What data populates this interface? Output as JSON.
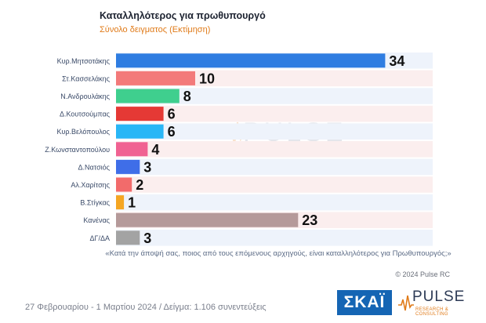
{
  "title": "Καταλληλότερος για πρωθυπουργό",
  "subtitle": "Σύνολο δειγματος   (Εκτίμηση)",
  "question": "«Κατά την άποψή σας, ποιος από τους επόμενους αρχηγούς, είναι καταλληλότερος για Πρωθυπουργός;»",
  "copyright": "© 2024 Pulse RC",
  "footer": "27 Φεβρουαρίου - 1 Μαρτίου 2024  /  Δείγμα:  1.106 συνεντεύξεις",
  "logos": {
    "channel": "ΣΚΑΪ",
    "pollster": "PULSE",
    "pollster_tag": "RESEARCH & CONSULTING"
  },
  "chart_data": {
    "type": "bar",
    "orientation": "horizontal",
    "categories": [
      "Κυρ.Μητσοτάκης",
      "Στ.Κασσελάκης",
      "Ν.Ανδρουλάκης",
      "Δ.Κουτσούμπας",
      "Κυρ.Βελόπουλος",
      "Ζ.Κωνσταντοπούλου",
      "Δ.Νατσιός",
      "Αλ.Χαρίτσης",
      "Β.Στίγκας",
      "Κανένας",
      "ΔΓ/ΔΑ"
    ],
    "values": [
      34,
      10,
      8,
      6,
      6,
      4,
      3,
      2,
      1,
      23,
      3
    ],
    "colors": [
      "#2f7de1",
      "#f37a7a",
      "#3fcf8e",
      "#e53935",
      "#29b6f6",
      "#f06292",
      "#3f6ee8",
      "#f26b6b",
      "#f5a623",
      "#b59a9a",
      "#a3a3a3"
    ],
    "xlim": [
      0,
      40
    ],
    "grid": false,
    "legend": "none"
  }
}
